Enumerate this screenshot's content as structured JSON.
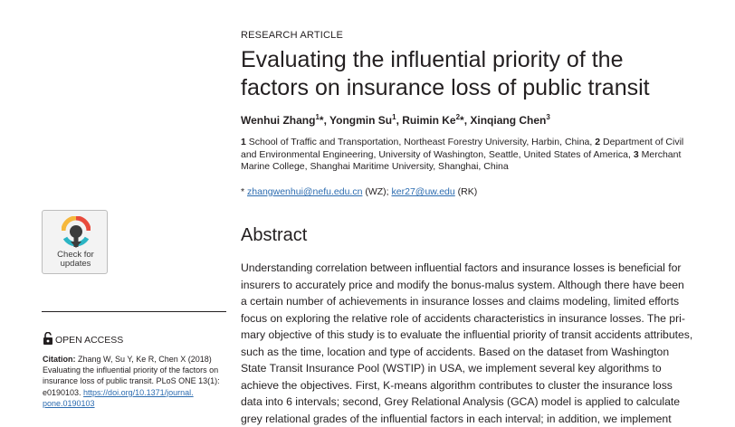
{
  "article_type": "RESEARCH ARTICLE",
  "title_lines": [
    "Evaluating the influential priority of the",
    "factors on insurance loss of public transit"
  ],
  "authors": [
    {
      "name": "Wenhui Zhang",
      "sup": "1",
      "mark": "*",
      "sep": ", "
    },
    {
      "name": "Yongmin Su",
      "sup": "1",
      "mark": "",
      "sep": ", "
    },
    {
      "name": "Ruimin Ke",
      "sup": "2",
      "mark": "*",
      "sep": ", "
    },
    {
      "name": "Xinqiang Chen",
      "sup": "3",
      "mark": "",
      "sep": ""
    }
  ],
  "affiliations": [
    {
      "num": "1",
      "text": "School of Traffic and Transportation, Northeast Forestry University, Harbin, China,"
    },
    {
      "num": "2",
      "text": "Department of Civil and Environmental Engineering, University of Washington, Seattle, United States of America,"
    },
    {
      "num": "3",
      "text": "Merchant Marine College, Shanghai Maritime University, Shanghai, China"
    }
  ],
  "correspondence": {
    "prefix": "* ",
    "email1": "zhangwenhui@nefu.edu.cn",
    "who1": " (WZ); ",
    "email2": "ker27@uw.edu",
    "who2": " (RK)"
  },
  "abstract_heading": "Abstract",
  "abstract_lines": [
    "Understanding correlation between influential factors and insurance losses is beneficial for",
    "insurers to accurately price and modify the bonus-malus system. Although there have been",
    "a certain number of achievements in insurance losses and claims modeling, limited efforts",
    "focus on exploring the relative role of accidents characteristics in insurance losses. The pri-",
    "mary objective of this study is to evaluate the influential priority of transit accidents attributes,",
    "such as the time, location and type of accidents. Based on the dataset from Washington",
    "State Transit Insurance Pool (WSTIP) in USA, we implement several key algorithms to",
    "achieve the objectives. First, K-means algorithm contributes to cluster the insurance loss",
    "data into 6 intervals; second, Grey Relational Analysis (GCA) model is applied to calculate",
    "grey relational grades of the influential factors in each interval; in addition, we implement"
  ],
  "badge": {
    "line1": "Check for",
    "line2": "updates"
  },
  "open_access": "OPEN ACCESS",
  "citation": {
    "label": "Citation:",
    "lines": [
      " Zhang W, Su Y, Ke R, Chen X (2018)",
      "Evaluating the influential priority of the factors on",
      "insurance loss of public transit. PLoS ONE 13(1):",
      "e0190103. "
    ],
    "doi_part1": "https://doi.org/10.1371/journal.",
    "doi_part2": "pone.0190103"
  },
  "colors": {
    "text": "#231f20",
    "link": "#2c6cb0",
    "badge_red": "#e84a3c",
    "badge_yellow": "#f6b83d",
    "badge_teal": "#2bb5c4"
  }
}
